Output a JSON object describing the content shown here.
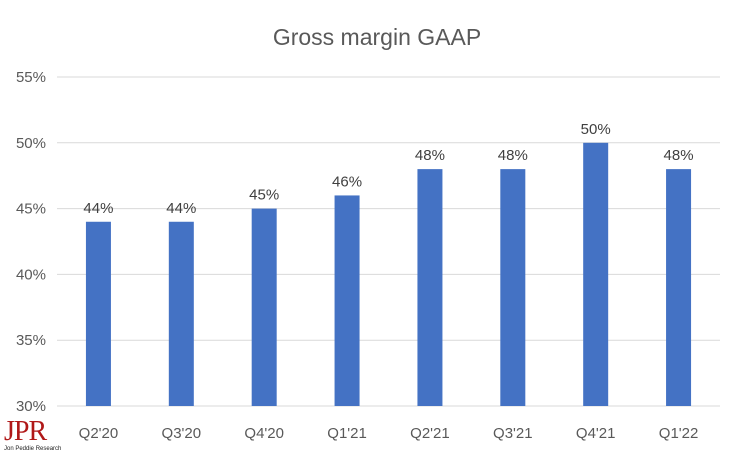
{
  "chart_data": {
    "type": "bar",
    "title": "Gross margin GAAP",
    "xlabel": "",
    "ylabel": "",
    "categories": [
      "Q2'20",
      "Q3'20",
      "Q4'20",
      "Q1'21",
      "Q2'21",
      "Q3'21",
      "Q4'21",
      "Q1'22"
    ],
    "values": [
      44,
      44,
      45,
      46,
      48,
      48,
      50,
      48
    ],
    "data_labels": [
      "44%",
      "44%",
      "45%",
      "46%",
      "48%",
      "48%",
      "50%",
      "48%"
    ],
    "ylim": [
      30,
      55
    ],
    "yticks": [
      30,
      35,
      40,
      45,
      50,
      55
    ],
    "ytick_labels": [
      "30%",
      "35%",
      "40%",
      "45%",
      "50%",
      "55%"
    ],
    "grid": true,
    "legend": "none",
    "bar_color": "#4472c4"
  },
  "logo": {
    "main": "JPR",
    "sub": "Jon Peddie Research"
  }
}
